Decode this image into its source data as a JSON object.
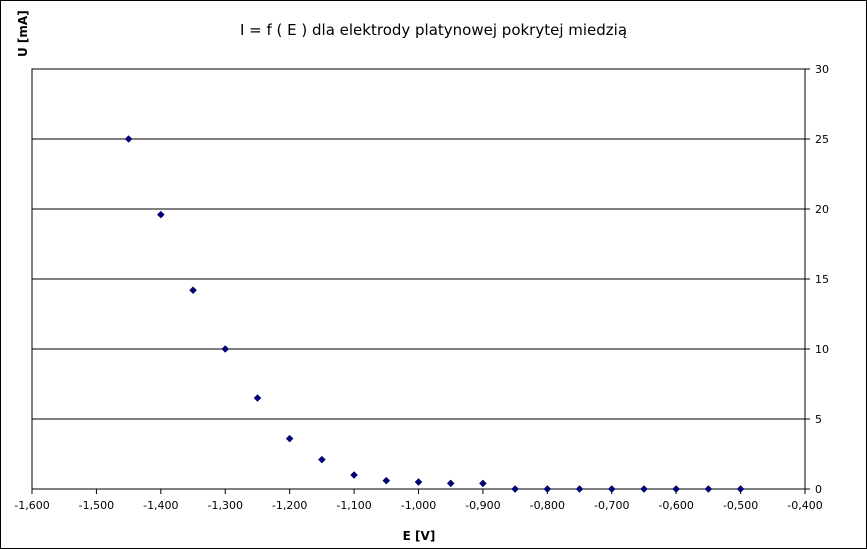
{
  "chart_data": {
    "type": "scatter",
    "title": "I = f ( E ) dla elektrody platynowej pokrytej miedzią",
    "xlabel": "E [V]",
    "ylabel": "U [mA]",
    "xlim": [
      -1.6,
      -0.4
    ],
    "ylim": [
      0,
      30
    ],
    "x_ticks": [
      "-1,600",
      "-1,500",
      "-1,400",
      "-1,300",
      "-1,200",
      "-1,100",
      "-1,000",
      "-0,900",
      "-0,800",
      "-0,700",
      "-0,600",
      "-0,500",
      "-0,400"
    ],
    "y_ticks": [
      "0",
      "5",
      "10",
      "15",
      "20",
      "25",
      "30"
    ],
    "y_axis_side": "right",
    "grid": "horizontal",
    "legend": "none",
    "marker_color": "#000080",
    "points": [
      {
        "x": -1.45,
        "y": 25.0
      },
      {
        "x": -1.4,
        "y": 19.6
      },
      {
        "x": -1.35,
        "y": 14.2
      },
      {
        "x": -1.3,
        "y": 10.0
      },
      {
        "x": -1.25,
        "y": 6.5
      },
      {
        "x": -1.2,
        "y": 3.6
      },
      {
        "x": -1.15,
        "y": 2.1
      },
      {
        "x": -1.1,
        "y": 1.0
      },
      {
        "x": -1.05,
        "y": 0.6
      },
      {
        "x": -1.0,
        "y": 0.5
      },
      {
        "x": -0.95,
        "y": 0.4
      },
      {
        "x": -0.9,
        "y": 0.4
      },
      {
        "x": -0.85,
        "y": 0.0
      },
      {
        "x": -0.8,
        "y": 0.0
      },
      {
        "x": -0.75,
        "y": 0.0
      },
      {
        "x": -0.7,
        "y": 0.0
      },
      {
        "x": -0.65,
        "y": 0.0
      },
      {
        "x": -0.6,
        "y": 0.0
      },
      {
        "x": -0.55,
        "y": 0.0
      },
      {
        "x": -0.5,
        "y": 0.0
      }
    ]
  }
}
